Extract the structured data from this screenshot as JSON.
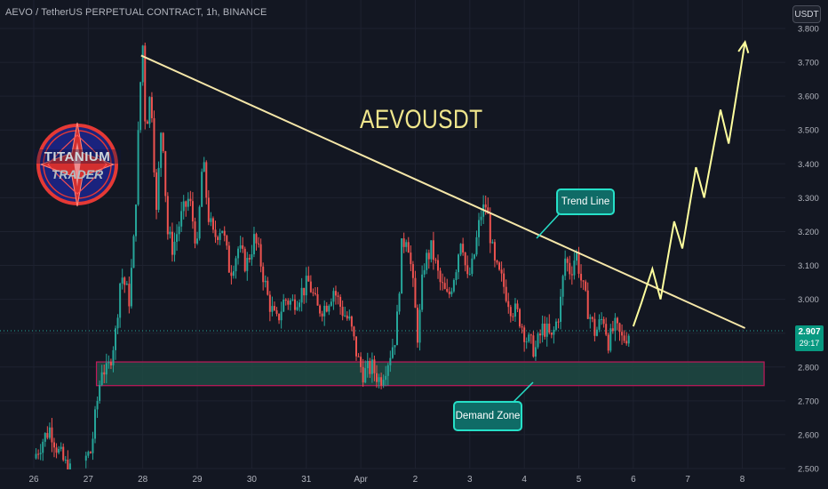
{
  "header": {
    "symbol_title": "AEVO / TetherUS PERPETUAL CONTRACT, 1h, BINANCE",
    "currency_button": "USDT"
  },
  "price_badge": {
    "price": "2.907",
    "countdown": "29:17"
  },
  "annotations": {
    "title": "AEVOUSDT",
    "trend_line_label": "Trend Line",
    "demand_zone_label": "Demand Zone"
  },
  "logo": {
    "line1": "TITANIUM",
    "line2": "TRADER"
  },
  "colors": {
    "background": "#131722",
    "bull": "#26a69a",
    "bear": "#ef5350",
    "trend_line": "#f5e6a8",
    "projection": "#ffff9e",
    "zone_fill": "#1e4a43",
    "zone_border": "#c2185b",
    "callout_fill": "#0f6b66",
    "callout_border": "#26e0c8"
  },
  "chart_data": {
    "type": "candlestick",
    "symbol": "AEVO / TetherUS PERPETUAL CONTRACT",
    "interval": "1h",
    "exchange": "BINANCE",
    "x_tick_labels": [
      "26",
      "27",
      "28",
      "29",
      "30",
      "31",
      "Apr",
      "2",
      "3",
      "4",
      "5",
      "6",
      "7",
      "8"
    ],
    "y_tick_labels": [
      "3.800",
      "3.700",
      "3.600",
      "3.500",
      "3.400",
      "3.300",
      "3.200",
      "3.100",
      "3.000",
      "2.900",
      "2.800",
      "2.700",
      "2.600",
      "2.500"
    ],
    "ylim": [
      2.46,
      3.82
    ],
    "y_ticks": [
      3.8,
      3.7,
      3.6,
      3.5,
      3.4,
      3.3,
      3.2,
      3.1,
      3.0,
      2.9,
      2.8,
      2.7,
      2.6,
      2.5
    ],
    "x_ticks_day_index": [
      0,
      1,
      2,
      3,
      4,
      5,
      6,
      7,
      8,
      9,
      10,
      11,
      12,
      13
    ],
    "last_price": 2.907,
    "price_path": [
      [
        0.0,
        2.53
      ],
      [
        0.15,
        2.58
      ],
      [
        0.3,
        2.62
      ],
      [
        0.45,
        2.55
      ],
      [
        0.55,
        2.52
      ],
      [
        0.65,
        2.49
      ],
      [
        0.9,
        2.52
      ],
      [
        1.05,
        2.55
      ],
      [
        1.15,
        2.68
      ],
      [
        1.25,
        2.8
      ],
      [
        1.35,
        2.78
      ],
      [
        1.5,
        2.9
      ],
      [
        1.6,
        3.08
      ],
      [
        1.75,
        3.0
      ],
      [
        1.85,
        3.2
      ],
      [
        1.95,
        3.62
      ],
      [
        2.0,
        3.75
      ],
      [
        2.05,
        3.5
      ],
      [
        2.15,
        3.62
      ],
      [
        2.25,
        3.25
      ],
      [
        2.35,
        3.55
      ],
      [
        2.45,
        3.2
      ],
      [
        2.55,
        3.15
      ],
      [
        2.7,
        3.24
      ],
      [
        2.85,
        3.3
      ],
      [
        3.0,
        3.15
      ],
      [
        3.1,
        3.42
      ],
      [
        3.2,
        3.25
      ],
      [
        3.3,
        3.18
      ],
      [
        3.45,
        3.22
      ],
      [
        3.6,
        3.08
      ],
      [
        3.75,
        3.15
      ],
      [
        3.9,
        3.1
      ],
      [
        4.05,
        3.18
      ],
      [
        4.15,
        3.12
      ],
      [
        4.3,
        3.0
      ],
      [
        4.45,
        2.93
      ],
      [
        4.6,
        3.0
      ],
      [
        4.75,
        2.99
      ],
      [
        4.9,
        3.02
      ],
      [
        5.05,
        3.05
      ],
      [
        5.2,
        2.97
      ],
      [
        5.35,
        2.98
      ],
      [
        5.5,
        3.03
      ],
      [
        5.65,
        2.97
      ],
      [
        5.8,
        2.93
      ],
      [
        5.95,
        2.82
      ],
      [
        6.05,
        2.78
      ],
      [
        6.2,
        2.8
      ],
      [
        6.35,
        2.76
      ],
      [
        6.5,
        2.82
      ],
      [
        6.65,
        2.9
      ],
      [
        6.75,
        3.15
      ],
      [
        6.85,
        3.2
      ],
      [
        6.95,
        3.05
      ],
      [
        7.05,
        2.88
      ],
      [
        7.15,
        3.1
      ],
      [
        7.3,
        3.15
      ],
      [
        7.45,
        3.05
      ],
      [
        7.6,
        3.0
      ],
      [
        7.75,
        3.1
      ],
      [
        7.85,
        3.2
      ],
      [
        7.95,
        3.05
      ],
      [
        8.05,
        3.1
      ],
      [
        8.2,
        3.25
      ],
      [
        8.3,
        3.28
      ],
      [
        8.45,
        3.1
      ],
      [
        8.6,
        3.05
      ],
      [
        8.75,
        2.98
      ],
      [
        8.9,
        2.95
      ],
      [
        9.05,
        2.88
      ],
      [
        9.2,
        2.85
      ],
      [
        9.35,
        2.92
      ],
      [
        9.5,
        2.88
      ],
      [
        9.65,
        2.97
      ],
      [
        9.75,
        3.12
      ],
      [
        9.85,
        3.08
      ],
      [
        9.95,
        3.14
      ],
      [
        10.05,
        3.05
      ],
      [
        10.15,
        2.98
      ],
      [
        10.3,
        2.9
      ],
      [
        10.45,
        2.95
      ],
      [
        10.55,
        2.87
      ],
      [
        10.65,
        2.92
      ],
      [
        10.8,
        2.88
      ],
      [
        10.95,
        2.907
      ]
    ],
    "trend_line": {
      "from": [
        1.97,
        3.72
      ],
      "to": [
        13.05,
        2.915
      ]
    },
    "demand_zone": {
      "x_start": 1.15,
      "x_end": 13.4,
      "y_low": 2.745,
      "y_high": 2.815
    },
    "projection_path": [
      [
        11.0,
        2.92
      ],
      [
        11.15,
        2.99
      ],
      [
        11.35,
        3.09
      ],
      [
        11.5,
        3.0
      ],
      [
        11.75,
        3.23
      ],
      [
        11.9,
        3.15
      ],
      [
        12.15,
        3.39
      ],
      [
        12.3,
        3.3
      ],
      [
        12.6,
        3.56
      ],
      [
        12.75,
        3.46
      ],
      [
        13.05,
        3.76
      ]
    ]
  }
}
